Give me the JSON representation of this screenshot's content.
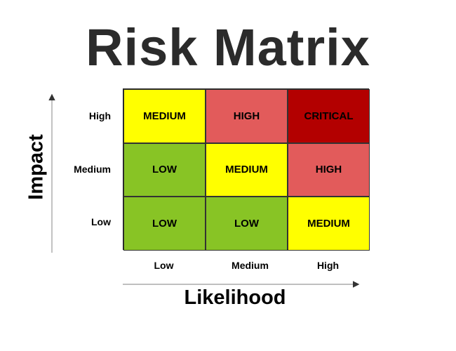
{
  "title": "Risk Matrix",
  "axes": {
    "y_title": "Impact",
    "x_title": "Likelihood",
    "y_levels": [
      "High",
      "Medium",
      "Low"
    ],
    "x_levels": [
      "Low",
      "Medium",
      "High"
    ]
  },
  "matrix": {
    "rows": [
      {
        "impact": "High",
        "cells": [
          {
            "label": "MEDIUM",
            "color": "#ffff00"
          },
          {
            "label": "HIGH",
            "color": "#e25b5b"
          },
          {
            "label": "CRITICAL",
            "color": "#b30000"
          }
        ]
      },
      {
        "impact": "Medium",
        "cells": [
          {
            "label": "LOW",
            "color": "#88c425"
          },
          {
            "label": "MEDIUM",
            "color": "#ffff00"
          },
          {
            "label": "HIGH",
            "color": "#e25b5b"
          }
        ]
      },
      {
        "impact": "Low",
        "cells": [
          {
            "label": "LOW",
            "color": "#88c425"
          },
          {
            "label": "LOW",
            "color": "#88c425"
          },
          {
            "label": "MEDIUM",
            "color": "#ffff00"
          }
        ]
      }
    ]
  }
}
